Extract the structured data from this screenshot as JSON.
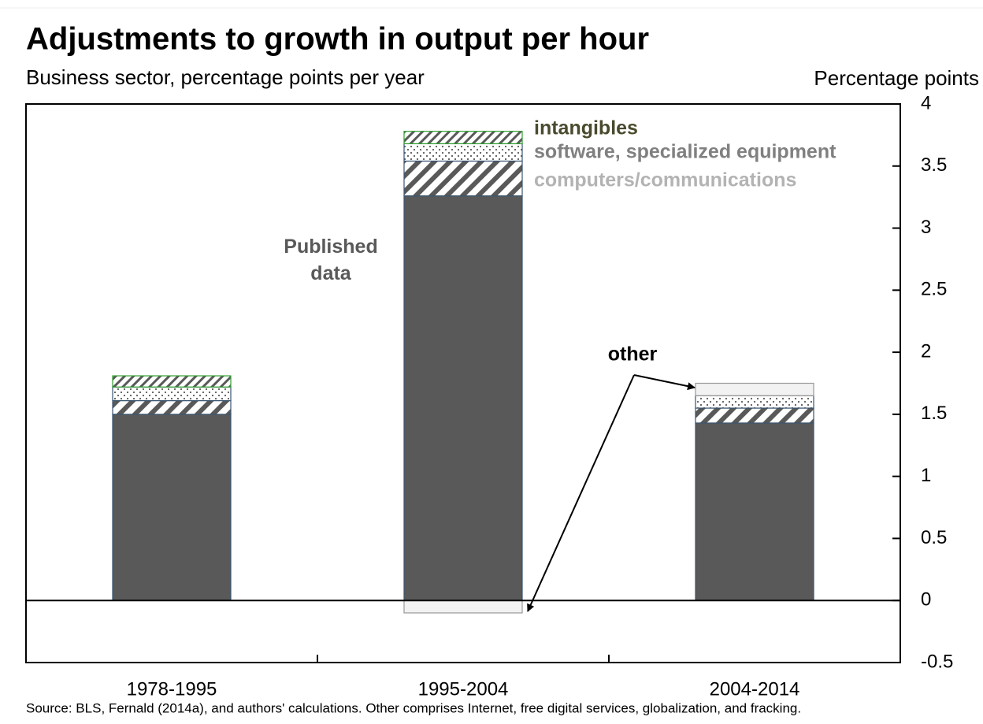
{
  "chart_data": {
    "type": "stacked-bar",
    "title": "Adjustments to growth in output per hour",
    "subtitle": "Business sector, percentage points per year",
    "y_axis_label": "Percentage points",
    "source": "Source: BLS, Fernald (2014a), and authors' calculations. Other comprises Internet, free digital services, globalization, and fracking.",
    "categories": [
      "1978-1995",
      "1995-2004",
      "2004-2014"
    ],
    "series": [
      {
        "name": "Published data",
        "color": "#595959",
        "pattern": "solid",
        "values": [
          1.5,
          3.26,
          1.43
        ]
      },
      {
        "name": "computers/communications",
        "color": "#595959",
        "pattern": "hatch",
        "values": [
          0.11,
          0.28,
          0.12
        ]
      },
      {
        "name": "software, specialized equipment",
        "color": "#595959",
        "pattern": "dots",
        "values": [
          0.11,
          0.14,
          0.1
        ]
      },
      {
        "name": "intangibles",
        "color": "#2e9e2e",
        "pattern": "fine-hatch",
        "values": [
          0.09,
          0.1,
          0
        ]
      },
      {
        "name": "other",
        "color": "#f2f2f2",
        "pattern": "solid",
        "values": [
          0,
          -0.1,
          0.1
        ]
      }
    ],
    "ylim": [
      -0.5,
      4
    ],
    "yticks": [
      -0.5,
      0,
      0.5,
      1,
      1.5,
      2,
      2.5,
      3,
      3.5,
      4
    ],
    "y_axis_side": "right",
    "grid": false
  }
}
